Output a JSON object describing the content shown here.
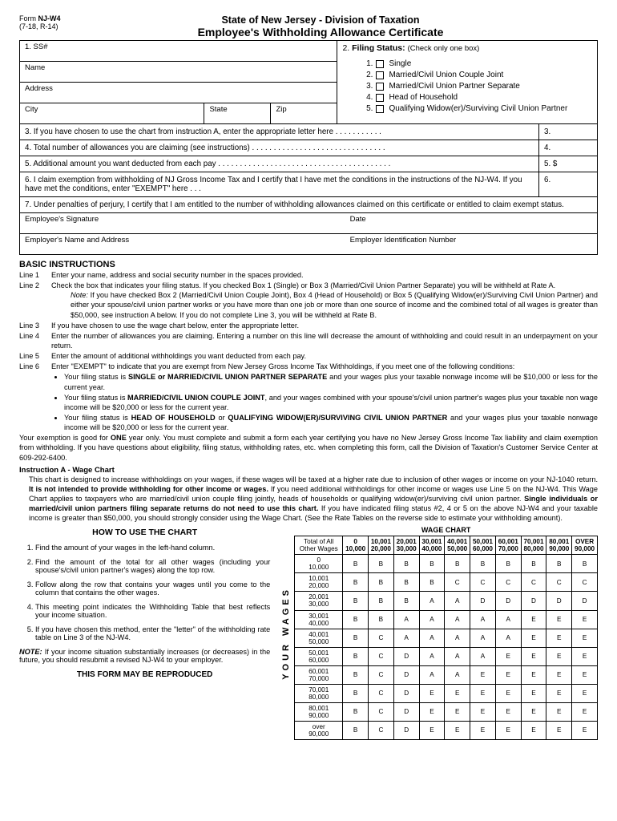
{
  "form_id": {
    "line1_pre": "Form ",
    "line1_bold": "NJ-W4",
    "line2": "(7-18, R-14)"
  },
  "header": {
    "a": "State of New Jersey - Division of Taxation",
    "b": "Employee's Withholding Allowance Certificate"
  },
  "top_left": {
    "ss": "1.  SS#",
    "name": "Name",
    "address": "Address",
    "city": "City",
    "state": "State",
    "zip": "Zip"
  },
  "filing_status": {
    "head_num": "2.",
    "head_bold": "Filing Status:",
    "head_rest": "(Check only one box)",
    "items": [
      {
        "n": "1.",
        "t": "Single"
      },
      {
        "n": "2.",
        "t": "Married/Civil Union Couple Joint"
      },
      {
        "n": "3.",
        "t": "Married/Civil Union Partner Separate"
      },
      {
        "n": "4.",
        "t": "Head of Household"
      },
      {
        "n": "5.",
        "t": "Qualifying Widow(er)/Surviving Civil Union Partner"
      }
    ]
  },
  "lines": {
    "l3q": "3.  If you have chosen to use the chart from instruction A, enter the appropriate letter here  . . . . . . . . . . .",
    "l3a": "3.",
    "l4q": "4.  Total number of allowances you are claiming (see instructions) . . . . . . . . . . . . . . . . . . . . . . . . . . . . . . .",
    "l4a": "4.",
    "l5q": "5.  Additional amount you want deducted from each pay . . . . . . . . . . . . . . . . . . . . . . . . . . . . . . . . . . . . . . . .",
    "l5a": "5.    $",
    "l6q": "6.  I claim exemption from withholding of NJ Gross Income Tax and I certify that I have met the conditions in the instructions of the NJ-W4.  If you have met the conditions, enter \"EXEMPT\" here  . . .",
    "l6a": "6.",
    "l7": "7.  Under penalties of perjury, I certify that I am entitled to the number of withholding allowances claimed on this certificate or entitled to claim exempt status."
  },
  "sig": {
    "esig": "Employee's Signature",
    "date": "Date",
    "ename": "Employer's Name and Address",
    "ein": "Employer Identification Number"
  },
  "basic_head": "BASIC INSTRUCTIONS",
  "inst": {
    "l1": {
      "no": "Line 1",
      "t": "Enter your name, address and social security number in the spaces provided."
    },
    "l2": {
      "no": "Line 2",
      "t": "Check the box that indicates your filing status. If you checked Box 1 (Single) or Box 3 (Married/Civil Union Partner Separate) you will be withheld at Rate A."
    },
    "note_head": "Note:",
    "note_t1": "If you have checked Box 2 (Married/Civil Union Couple Joint), Box 4 (Head of Household) or Box 5 (Qualifying Widow(er)/Surviving Civil Union Partner) and either your spouse/civil union partner works or you have more than one job or more than one source of income and the combined total of all wages is greater than $50,000, see instruction A below. If you do not complete Line 3, you will be withheld at Rate B.",
    "l3": {
      "no": "Line 3",
      "t": "If you have chosen to use the wage chart below, enter the appropriate letter."
    },
    "l4": {
      "no": "Line 4",
      "t": "Enter the number of allowances you are claiming.  Entering a number on this line will decrease the amount of withholding and could result in an underpayment on your return."
    },
    "l5": {
      "no": "Line 5",
      "t": "Enter the amount of additional withholdings you want deducted from each pay."
    },
    "l6": {
      "no": "Line 6",
      "t": "Enter \"EXEMPT\" to indicate that you are exempt from New Jersey Gross Income Tax Withholdings, if you meet one of the following conditions:"
    },
    "b1a": "Your filing status is ",
    "b1b": "SINGLE or MARRIED/CIVIL UNION PARTNER SEPARATE",
    "b1c": " and your wages plus your taxable nonwage income will be $10,000 or less for the current year.",
    "b2a": "Your filing status is ",
    "b2b": "MARRIED/CIVIL UNION COUPLE JOINT",
    "b2c": ", and your wages combined with your spouse's/civil union partner's wages plus your taxable non wage income will be $20,000 or less for the current year.",
    "b3a": "Your filing status is ",
    "b3b": "HEAD OF HOUSEHOLD",
    "b3c": " or ",
    "b3d": "QUALIFYING WIDOW(ER)/SURVIVING CIVIL UNION PARTNER",
    "b3e": " and your wages plus your taxable nonwage income will be $20,000 or less for the current year.",
    "exempt_p_a": "Your exemption is good for ",
    "exempt_p_b": "ONE",
    "exempt_p_c": " year only.  You must complete and submit a form each year certifying you have no New Jersey Gross Income Tax liability and claim exemption from withholding.  If you have questions about eligibility, filing status, withholding rates, etc. when completing this form, call the Division of Taxation's Customer Service Center at 609-292-6400."
  },
  "instrA": {
    "head": "Instruction A - Wage Chart",
    "p1a": "This chart is designed to increase withholdings on your wages, if these wages will be taxed at a higher rate due to inclusion of other wages or income on your NJ-1040 return.  ",
    "p1b": "It is not intended to provide withholding for other income or wages.",
    "p1c": "  If you need additional withholdings for other income or wages use Line 5 on the NJ-W4.  This Wage Chart applies to taxpayers who are married/civil union couple filing jointly, heads of households or qualifying widow(er)/surviving civil union partner.  ",
    "p1d": "Single individuals or married/civil union partners filing separate returns do not need to use this chart.",
    "p1e": "  If you have indicated filing status #2, 4 or 5 on the above NJ-W4 and your taxable income is greater than $50,000, you should strongly consider using the Wage Chart.  (See the Rate Tables on the reverse side to estimate your withholding amount)."
  },
  "howto": {
    "head": "HOW TO USE THE CHART",
    "s1": "Find the amount of your wages in the left-hand column.",
    "s2": "Find the amount of the total for all other wages (including your spouse's/civil union partner's wages) along the top row.",
    "s3": "Follow along the row that contains your wages until you come to the column that contains the other wages.",
    "s4": "This meeting point indicates the Withholding Table that best reflects your income situation.",
    "s5": "If you have chosen this method, enter the \"letter\" of the withholding rate table on Line 3 of the NJ-W4.",
    "note": "If your income situation substantially increases (or decreases) in the future, you should resubmit a revised NJ-W4 to your employer.",
    "note_b": "NOTE:",
    "foot": "THIS FORM MAY BE REPRODUCED"
  },
  "wage_chart": {
    "title": "WAGE CHART",
    "vlabel": "YOUR  WAGES",
    "corner_a": "Total of All",
    "corner_b": "Other Wages",
    "cols": [
      {
        "a": "0",
        "b": "10,000"
      },
      {
        "a": "10,001",
        "b": "20,000"
      },
      {
        "a": "20,001",
        "b": "30,000"
      },
      {
        "a": "30,001",
        "b": "40,000"
      },
      {
        "a": "40,001",
        "b": "50,000"
      },
      {
        "a": "50,001",
        "b": "60,000"
      },
      {
        "a": "60,001",
        "b": "70,000"
      },
      {
        "a": "70,001",
        "b": "80,000"
      },
      {
        "a": "80,001",
        "b": "90,000"
      },
      {
        "a": "OVER",
        "b": "90,000"
      }
    ],
    "rows": [
      {
        "a": "0",
        "b": "10,000",
        "v": [
          "B",
          "B",
          "B",
          "B",
          "B",
          "B",
          "B",
          "B",
          "B",
          "B"
        ]
      },
      {
        "a": "10,001",
        "b": "20,000",
        "v": [
          "B",
          "B",
          "B",
          "B",
          "C",
          "C",
          "C",
          "C",
          "C",
          "C"
        ]
      },
      {
        "a": "20,001",
        "b": "30,000",
        "v": [
          "B",
          "B",
          "B",
          "A",
          "A",
          "D",
          "D",
          "D",
          "D",
          "D"
        ]
      },
      {
        "a": "30,001",
        "b": "40,000",
        "v": [
          "B",
          "B",
          "A",
          "A",
          "A",
          "A",
          "A",
          "E",
          "E",
          "E"
        ]
      },
      {
        "a": "40,001",
        "b": "50,000",
        "v": [
          "B",
          "C",
          "A",
          "A",
          "A",
          "A",
          "A",
          "E",
          "E",
          "E"
        ]
      },
      {
        "a": "50,001",
        "b": "60,000",
        "v": [
          "B",
          "C",
          "D",
          "A",
          "A",
          "A",
          "E",
          "E",
          "E",
          "E"
        ]
      },
      {
        "a": "60,001",
        "b": "70,000",
        "v": [
          "B",
          "C",
          "D",
          "A",
          "A",
          "E",
          "E",
          "E",
          "E",
          "E"
        ]
      },
      {
        "a": "70,001",
        "b": "80,000",
        "v": [
          "B",
          "C",
          "D",
          "E",
          "E",
          "E",
          "E",
          "E",
          "E",
          "E"
        ]
      },
      {
        "a": "80,001",
        "b": "90,000",
        "v": [
          "B",
          "C",
          "D",
          "E",
          "E",
          "E",
          "E",
          "E",
          "E",
          "E"
        ]
      },
      {
        "a": "over",
        "b": "90,000",
        "v": [
          "B",
          "C",
          "D",
          "E",
          "E",
          "E",
          "E",
          "E",
          "E",
          "E"
        ]
      }
    ]
  }
}
